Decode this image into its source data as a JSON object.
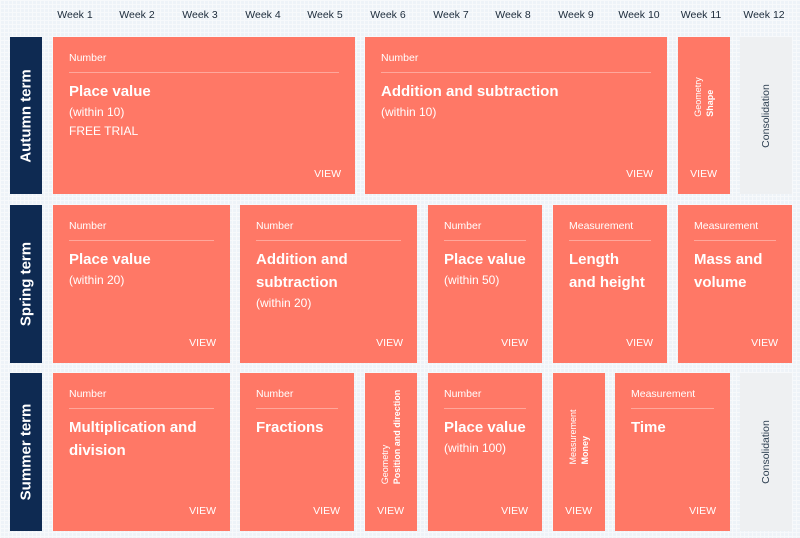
{
  "weeks": [
    "Week 1",
    "Week 2",
    "Week 3",
    "Week 4",
    "Week 5",
    "Week 6",
    "Week 7",
    "Week 8",
    "Week 9",
    "Week 10",
    "Week 11",
    "Week 12"
  ],
  "terms": {
    "autumn": "Autumn term",
    "spring": "Spring term",
    "summer": "Summer term"
  },
  "view_label": "VIEW",
  "consolidation_label": "Consolidation",
  "autumn": {
    "place_value": {
      "category": "Number",
      "title": "Place value",
      "sub": "(within 10)",
      "sub2": "FREE TRIAL"
    },
    "addition": {
      "category": "Number",
      "title": "Addition and subtraction",
      "sub": "(within 10)"
    },
    "shape": {
      "category": "Geometry",
      "title": "Shape"
    }
  },
  "spring": {
    "place_value": {
      "category": "Number",
      "title": "Place value",
      "sub": "(within 20)"
    },
    "addition": {
      "category": "Number",
      "title": "Addition and subtraction",
      "sub": "(within 20)"
    },
    "place_value_50": {
      "category": "Number",
      "title": "Place value",
      "sub": "(within 50)"
    },
    "length": {
      "category": "Measurement",
      "title": "Length and height"
    },
    "mass": {
      "category": "Measurement",
      "title": "Mass and volume"
    }
  },
  "summer": {
    "multiplication": {
      "category": "Number",
      "title": "Multiplication and division"
    },
    "fractions": {
      "category": "Number",
      "title": "Fractions"
    },
    "position": {
      "category": "Geometry",
      "title": "Position and direction"
    },
    "place_value_100": {
      "category": "Number",
      "title": "Place value",
      "sub": "(within 100)"
    },
    "money": {
      "category": "Measurement",
      "title": "Money"
    },
    "time": {
      "category": "Measurement",
      "title": "Time"
    }
  }
}
